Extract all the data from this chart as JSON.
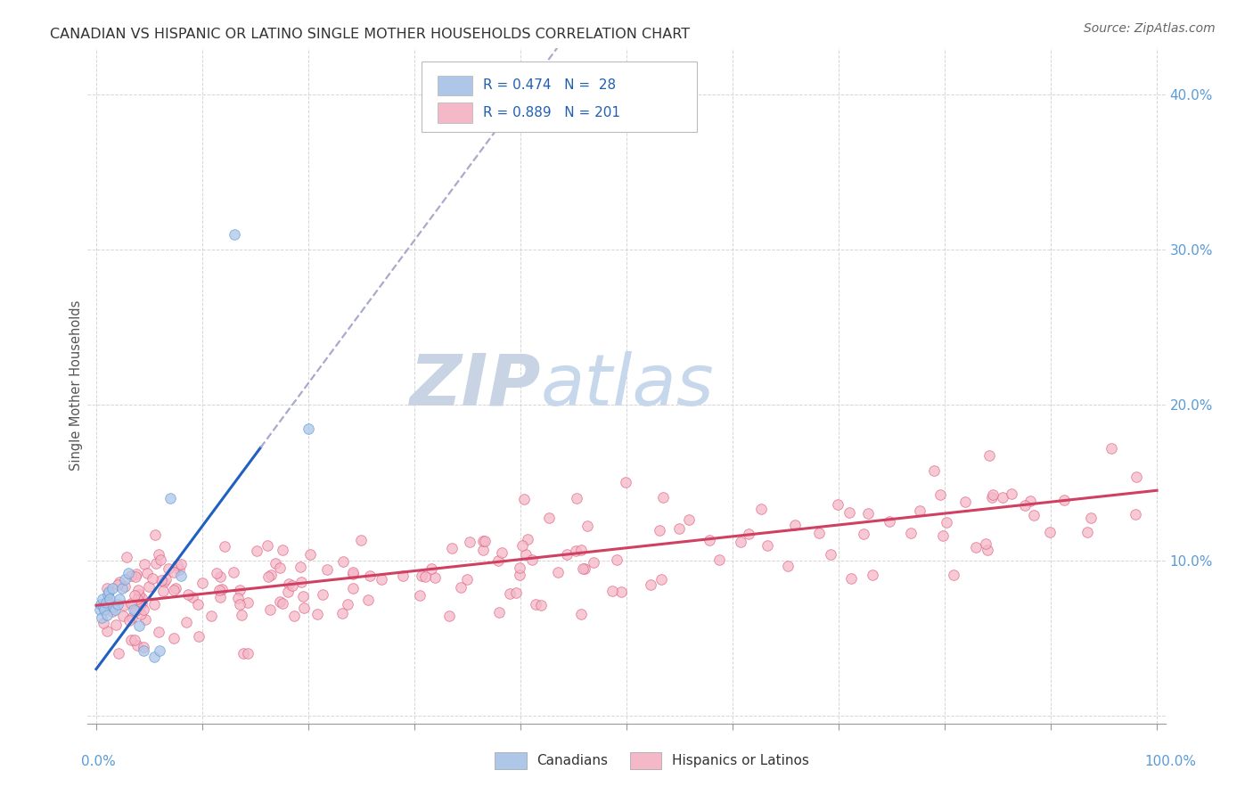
{
  "title": "CANADIAN VS HISPANIC OR LATINO SINGLE MOTHER HOUSEHOLDS CORRELATION CHART",
  "source": "Source: ZipAtlas.com",
  "ylabel": "Single Mother Households",
  "canadian_R": 0.474,
  "canadian_N": 28,
  "hispanic_R": 0.889,
  "hispanic_N": 201,
  "canadian_color": "#aec6e8",
  "canadian_edge_color": "#5b9bd5",
  "hispanic_color": "#f4b8c8",
  "hispanic_edge_color": "#e06080",
  "trend_canadian_color": "#2060c0",
  "trend_canadian_dashed_color": "#aaaacc",
  "trend_hispanic_color": "#d04060",
  "watermark_zip_color": "#c8d4e4",
  "watermark_atlas_color": "#c8d8ec",
  "background_color": "#ffffff",
  "grid_color": "#cccccc",
  "title_color": "#333333",
  "right_axis_color": "#5b9bd5",
  "ylabel_color": "#555555",
  "legend_text_color": "#2060b0",
  "source_color": "#666666",
  "bottom_label_color": "#5b9bd5",
  "scatter_alpha": 0.75,
  "scatter_size": 70,
  "xlim": [
    -0.008,
    1.008
  ],
  "ylim": [
    -0.005,
    0.43
  ],
  "yticks": [
    0.0,
    0.1,
    0.2,
    0.3,
    0.4
  ],
  "ytick_labels": [
    "",
    "10.0%",
    "20.0%",
    "30.0%",
    "40.0%"
  ],
  "hisp_trend_x0": 0.0,
  "hisp_trend_x1": 1.0,
  "hisp_trend_y0": 0.071,
  "hisp_trend_y1": 0.145,
  "can_trend_solid_x0": 0.0,
  "can_trend_solid_x1": 0.155,
  "can_trend_y_at_0": 0.03,
  "can_trend_slope": 0.92,
  "can_trend_dashed_x0": 0.155,
  "can_trend_dashed_x1": 0.7
}
